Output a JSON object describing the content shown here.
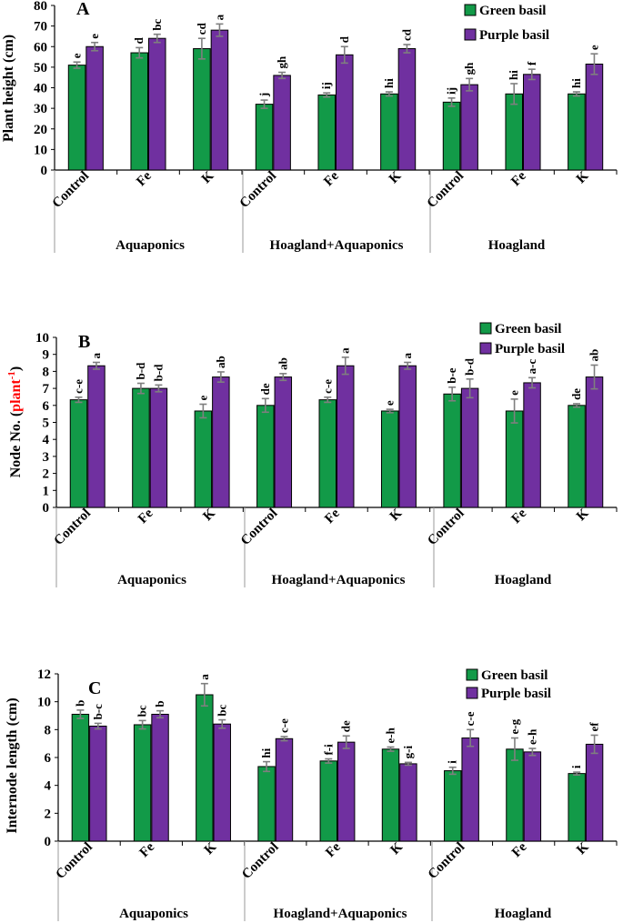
{
  "colors": {
    "green": "#129A48",
    "purple": "#7030A0",
    "error_bar": "#7F7F7F",
    "axis": "#000000",
    "unit_highlight": "#FF0000"
  },
  "legend": [
    "Green basil",
    "Purple basil"
  ],
  "groups": [
    "Aquaponics",
    "Hoagland+Aquaponics",
    "Hoagland"
  ],
  "categories": [
    "Control",
    "Fe",
    "K",
    "Control",
    "Fe",
    "K",
    "Control",
    "Fe",
    "K"
  ],
  "chart_data": [
    {
      "type": "bar",
      "panel_label": "A",
      "ylabel": "Plant height (cm)",
      "ylim": [
        0,
        80
      ],
      "yticks": [
        0,
        10,
        20,
        30,
        40,
        50,
        60,
        70,
        80
      ],
      "categories": [
        "Control",
        "Fe",
        "K",
        "Control",
        "Fe",
        "K",
        "Control",
        "Fe",
        "K"
      ],
      "groups": [
        "Aquaponics",
        "Hoagland+Aquaponics",
        "Hoagland"
      ],
      "series": [
        {
          "name": "Green basil",
          "values": [
            51,
            57,
            59,
            32,
            36.5,
            37,
            33,
            37,
            37
          ],
          "errors": [
            1.5,
            2.5,
            5,
            2,
            1,
            1,
            2,
            5,
            1
          ],
          "letters": [
            "e",
            "d",
            "cd",
            "j",
            "ij",
            "hi",
            "ij",
            "hi",
            "hi"
          ]
        },
        {
          "name": "Purple basil",
          "values": [
            60,
            64,
            68,
            46,
            56,
            59,
            41.5,
            46.5,
            51.5
          ],
          "errors": [
            2,
            2,
            3,
            1.5,
            4,
            2,
            3,
            2.5,
            5
          ],
          "letters": [
            "e",
            "bc",
            "a",
            "gh",
            "d",
            "cd",
            "gh",
            "f",
            "e"
          ]
        }
      ]
    },
    {
      "type": "bar",
      "panel_label": "B",
      "ylabel_main": "Node No. (",
      "ylabel_unit": "plant",
      "ylabel_exp": "-1",
      "ylabel_close": ")",
      "ylim": [
        0,
        10
      ],
      "yticks": [
        0,
        1,
        2,
        3,
        4,
        5,
        6,
        7,
        8,
        9,
        10
      ],
      "categories": [
        "Control",
        "Fe",
        "K",
        "Control",
        "Fe",
        "K",
        "Control",
        "Fe",
        "K"
      ],
      "groups": [
        "Aquaponics",
        "Hoagland+Aquaponics",
        "Hoagland"
      ],
      "series": [
        {
          "name": "Green basil",
          "values": [
            6.33,
            7.0,
            5.67,
            6.0,
            6.33,
            5.67,
            6.67,
            5.67,
            6.0
          ],
          "errors": [
            0.15,
            0.3,
            0.4,
            0.4,
            0.15,
            0.1,
            0.4,
            0.7,
            0.1
          ],
          "letters": [
            "c-e",
            "b-d",
            "e",
            "de",
            "c-e",
            "e",
            "b-e",
            "e",
            "de"
          ]
        },
        {
          "name": "Purple basil",
          "values": [
            8.33,
            7.0,
            7.67,
            7.67,
            8.33,
            8.33,
            7.0,
            7.33,
            7.67
          ],
          "errors": [
            0.2,
            0.2,
            0.3,
            0.2,
            0.5,
            0.2,
            0.55,
            0.3,
            0.7
          ],
          "letters": [
            "a",
            "b-d",
            "ab",
            "ab",
            "a",
            "a",
            "b-d",
            "a-c",
            "ab"
          ]
        }
      ]
    },
    {
      "type": "bar",
      "panel_label": "C",
      "ylabel": "Internode length (cm)",
      "ylim": [
        0,
        12
      ],
      "yticks": [
        0,
        2,
        4,
        6,
        8,
        10,
        12
      ],
      "categories": [
        "Control",
        "Fe",
        "K",
        "Control",
        "Fe",
        "K",
        "Control",
        "Fe",
        "K"
      ],
      "groups": [
        "Aquaponics",
        "Hoagland+Aquaponics",
        "Hoagland"
      ],
      "series": [
        {
          "name": "Green basil",
          "values": [
            9.1,
            8.35,
            10.5,
            5.35,
            5.75,
            6.6,
            5.05,
            6.6,
            4.85
          ],
          "errors": [
            0.3,
            0.3,
            0.8,
            0.35,
            0.15,
            0.15,
            0.25,
            0.8,
            0.1
          ],
          "letters": [
            "b",
            "bc",
            "a",
            "hi",
            "f-i",
            "e-h",
            "i",
            "e-g",
            "i"
          ]
        },
        {
          "name": "Purple basil",
          "values": [
            8.25,
            9.1,
            8.4,
            7.35,
            7.1,
            5.55,
            7.4,
            6.4,
            6.95
          ],
          "errors": [
            0.2,
            0.25,
            0.3,
            0.15,
            0.45,
            0.1,
            0.6,
            0.25,
            0.65
          ],
          "letters": [
            "b-c",
            "b",
            "bc",
            "c-e",
            "de",
            "g-i",
            "c-e",
            "e-h",
            "ef"
          ]
        }
      ]
    }
  ]
}
